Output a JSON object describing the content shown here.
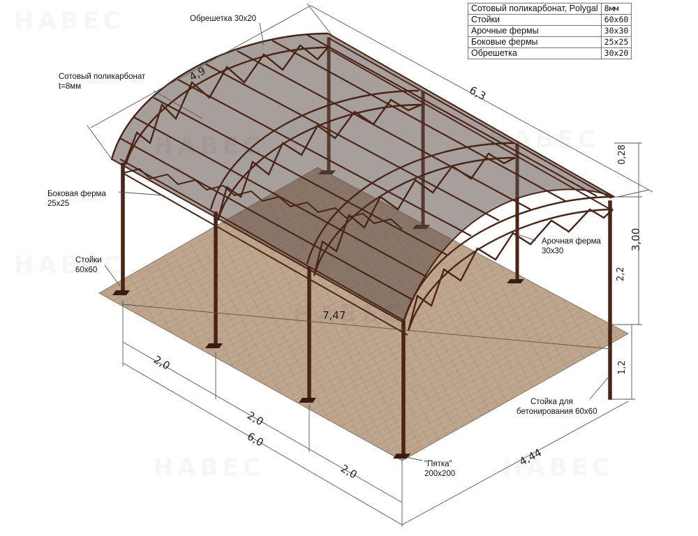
{
  "spec_table": [
    {
      "name": "Сотовый поликарбонат, Polygal",
      "value": "8мм"
    },
    {
      "name": "Стойки",
      "value": "60x60"
    },
    {
      "name": "Арочные фермы",
      "value": "30x30"
    },
    {
      "name": "Боковые фермы",
      "value": "25x25"
    },
    {
      "name": "Обрешетка",
      "value": "30x20"
    }
  ],
  "labels": {
    "battens": "Обрешетка 30x20",
    "polycarbonate_1": "Сотовый поликарбонат",
    "polycarbonate_2": "t=8мм",
    "side_truss_1": "Боковая ферма",
    "side_truss_2": "25x25",
    "posts_1": "Стойки",
    "posts_2": "60x60",
    "arch_truss_1": "Арочная ферма",
    "arch_truss_2": "30x30",
    "concrete_post_1": "Стойка для",
    "concrete_post_2": "бетонирования 60x60",
    "heel_1": "\"Пятка\"",
    "heel_2": "200x200"
  },
  "dimensions": {
    "arch_width": "4,9",
    "length_top": "6,3",
    "diagonal": "7,47",
    "arch_rise": "0,28",
    "total_height": "3,00",
    "post_height": "2,2",
    "burial_depth": "1,2",
    "span_1": "2,0",
    "span_2": "2,0",
    "span_3": "2,0",
    "total_length": "6,0",
    "width_bottom": "4,44"
  },
  "watermark": "НАВЕС",
  "colors": {
    "steel": "#4a2516",
    "floor": "#b9a08a",
    "roof": "rgba(95,80,75,0.55)",
    "dimension_line": "#555555"
  }
}
